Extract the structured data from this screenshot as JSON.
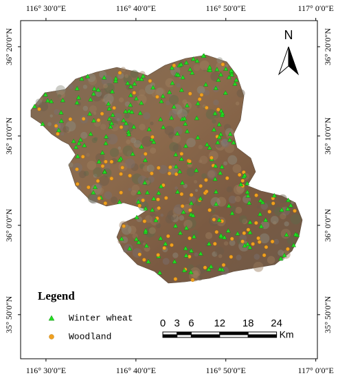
{
  "map": {
    "lon_ticks": [
      {
        "value": 116.5,
        "label": "116° 30′0″E"
      },
      {
        "value": 116.6667,
        "label": "116° 40′0″E"
      },
      {
        "value": 116.8333,
        "label": "116° 50′0″E"
      },
      {
        "value": 117.0,
        "label": "117° 0′0″E"
      }
    ],
    "lat_ticks": [
      {
        "value": 36.3333,
        "label": "36° 20′0″N"
      },
      {
        "value": 36.1667,
        "label": "36° 10′0″N"
      },
      {
        "value": 36.0,
        "label": "36° 0′0″N"
      },
      {
        "value": 35.8333,
        "label": "35° 50′0″N"
      }
    ],
    "xlim": [
      116.453,
      117.003
    ],
    "ylim": [
      35.751,
      36.382
    ],
    "north": "N",
    "legend": {
      "title": "Legend",
      "items": [
        {
          "name": "Winter wheat",
          "color": "#22dd22",
          "shape": "triangle"
        },
        {
          "name": "Woodland",
          "color": "#f0a020",
          "shape": "circle"
        }
      ]
    },
    "scale_bar": {
      "ticks": [
        0,
        3,
        6,
        12,
        18,
        24
      ],
      "unit": "Km"
    }
  }
}
